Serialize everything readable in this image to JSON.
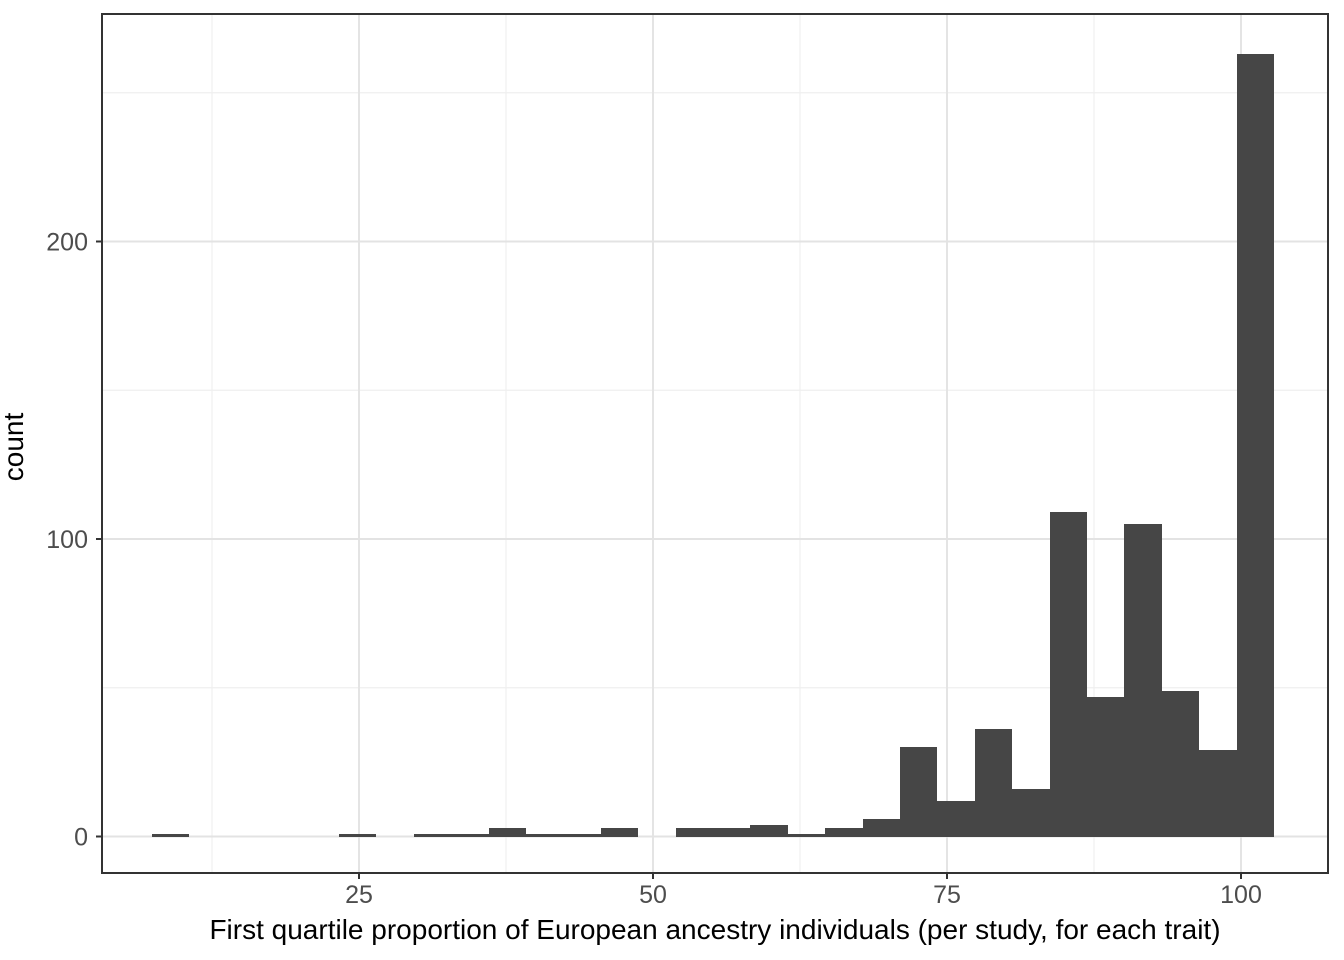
{
  "figure": {
    "x_axis_title": "First quartile proportion of European ancestry individuals (per study, for each trait)",
    "y_axis_title": "count"
  },
  "chart_data": {
    "type": "bar",
    "subtype": "histogram",
    "title": "",
    "xlabel": "First quartile proportion of European ancestry individuals (per study, for each trait)",
    "ylabel": "count",
    "bin_start": 7.4,
    "bin_width": 3.18,
    "counts": [
      1,
      0,
      0,
      0,
      0,
      1,
      0,
      1,
      1,
      3,
      1,
      1,
      3,
      0,
      3,
      3,
      4,
      1,
      3,
      6,
      30,
      12,
      36,
      16,
      109,
      47,
      105,
      49,
      29,
      263
    ],
    "x_ticks": [
      25,
      50,
      75,
      100
    ],
    "x_tick_labels": [
      "25",
      "50",
      "75",
      "100"
    ],
    "x_minor_ticks": [
      12.5,
      37.5,
      62.5,
      87.5
    ],
    "y_ticks": [
      0,
      100,
      200
    ],
    "y_tick_labels": [
      "0",
      "100",
      "200"
    ],
    "y_minor_ticks": [
      50,
      150,
      250
    ],
    "xlim": [
      3.2,
      107.4
    ],
    "ylim": [
      -12.1,
      276.5
    ],
    "grid": "major+minor",
    "legend": "none",
    "colors": {
      "bar_fill": "#464646",
      "panel_border": "#333333",
      "grid_major": "#e3e3e3",
      "grid_minor": "#efefef",
      "tick_mark": "#333333",
      "tick_label": "#4d4d4d",
      "axis_title": "#000000",
      "background": "#ffffff"
    }
  }
}
